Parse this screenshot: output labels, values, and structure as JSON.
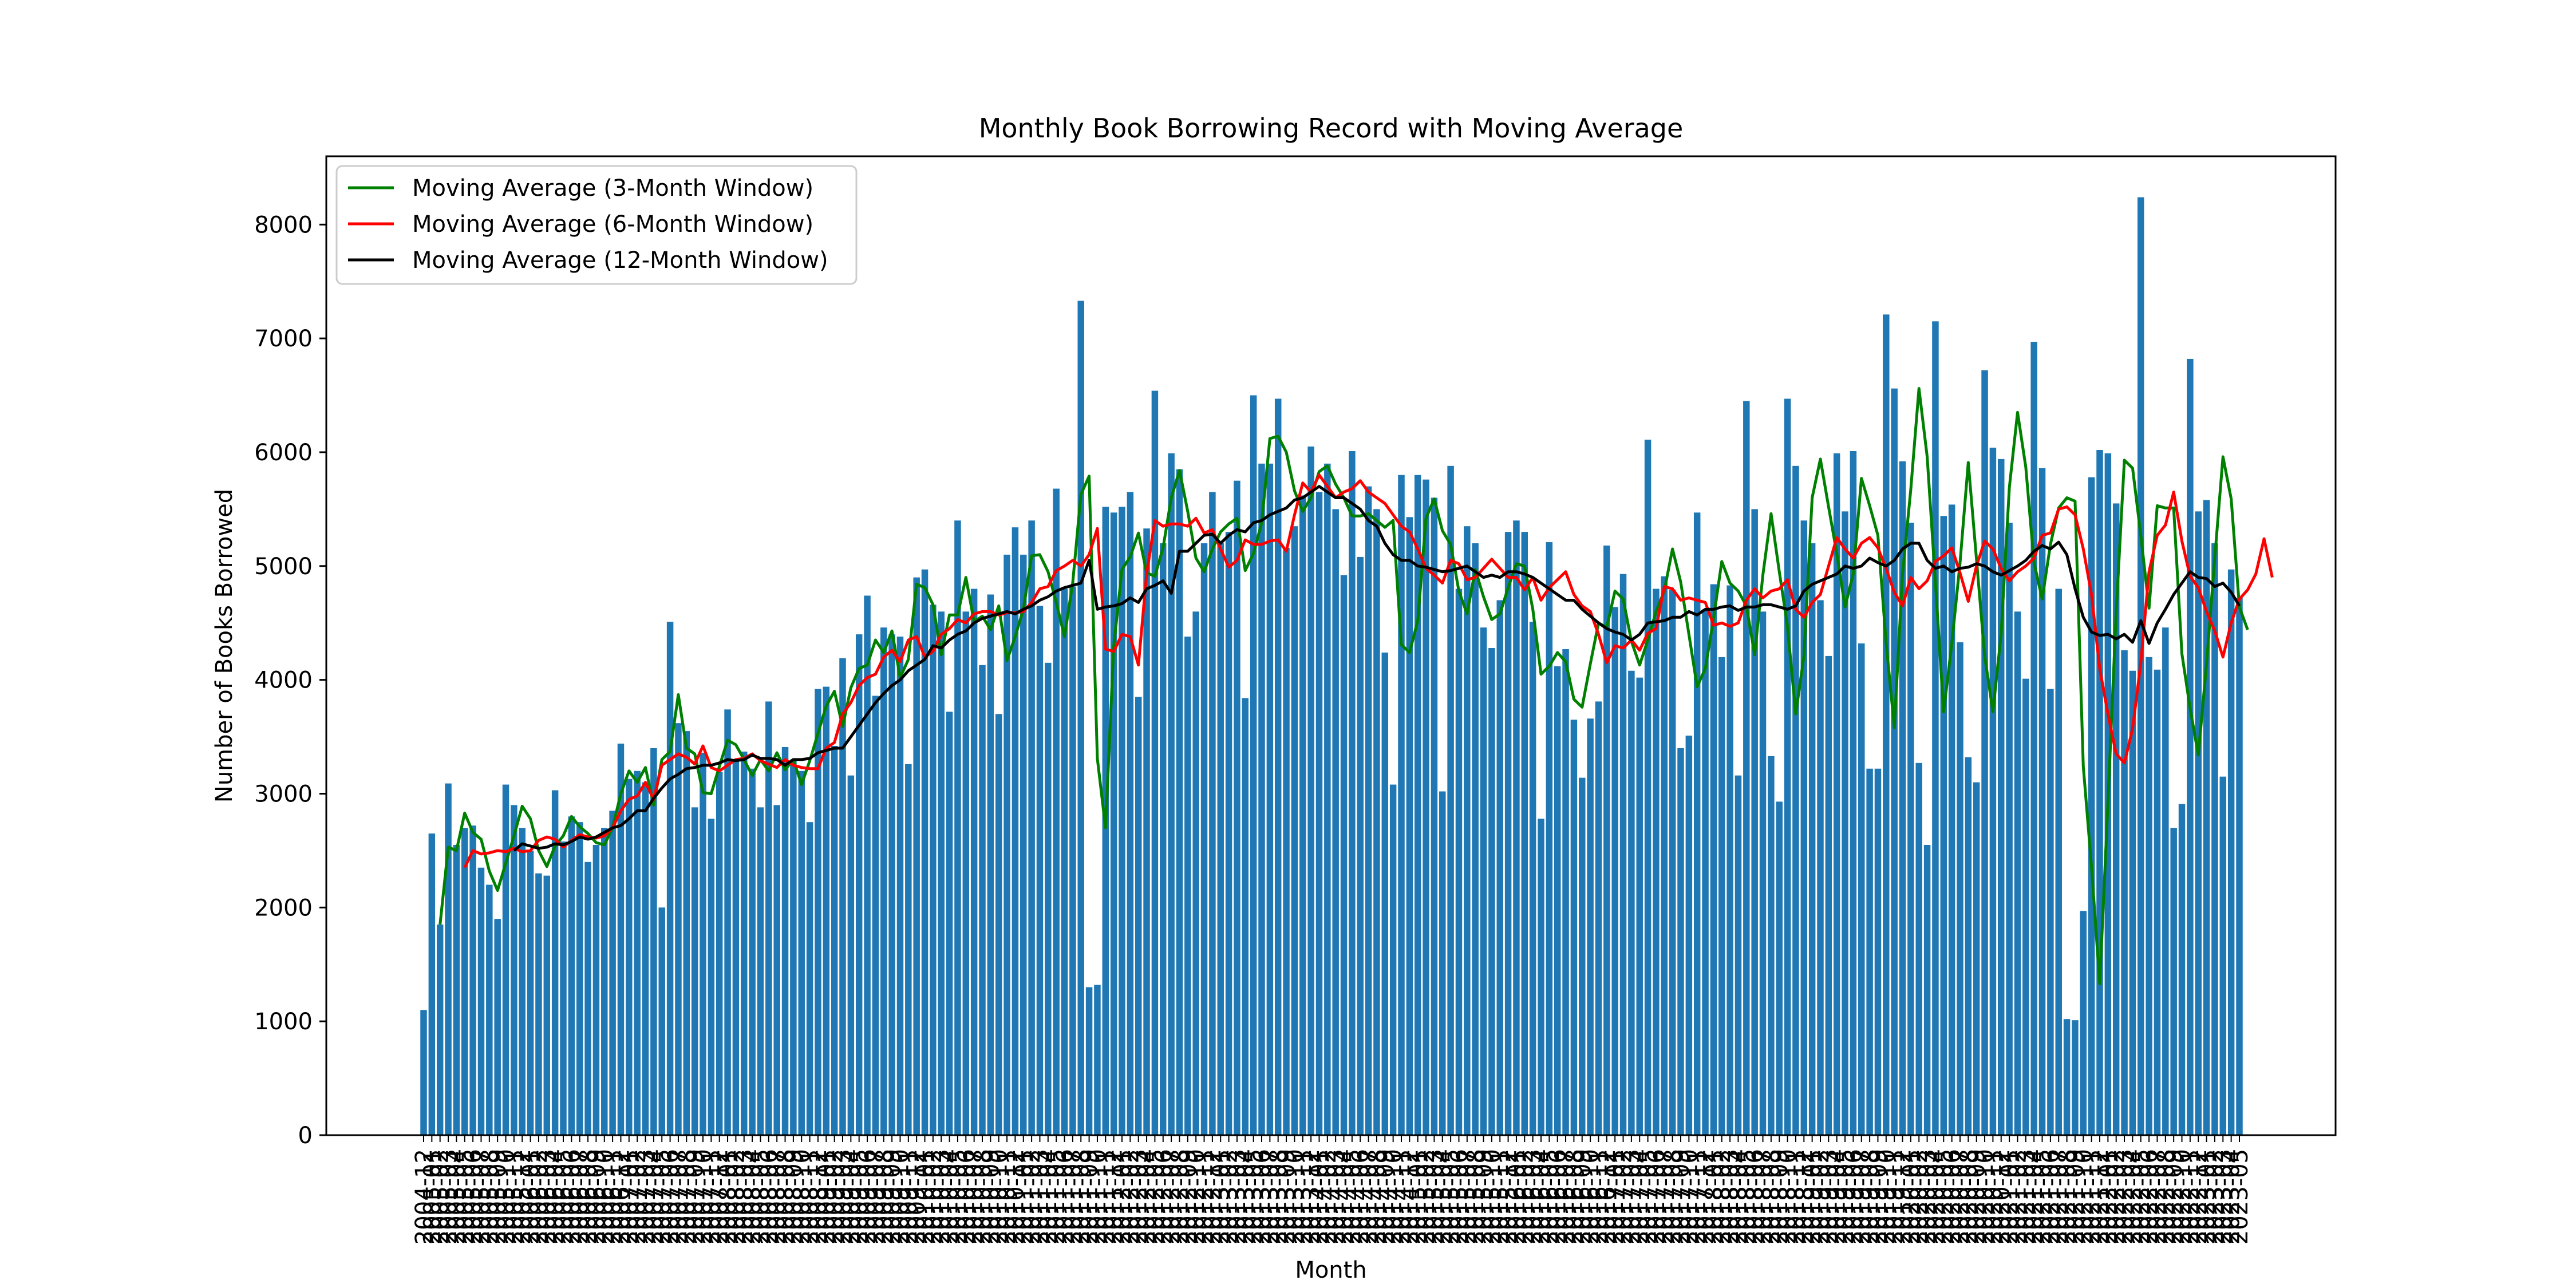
{
  "chart_data": {
    "type": "bar",
    "title": "Monthly Book Borrowing Record with Moving Average",
    "xlabel": "Month",
    "ylabel": "Number of Books Borrowed",
    "ylim": [
      0,
      8600
    ],
    "yticks": [
      0,
      1000,
      2000,
      3000,
      4000,
      5000,
      6000,
      7000,
      8000
    ],
    "start_month": "2004-12",
    "end_month": "2023-03",
    "bar_color": "#1f77b4",
    "legend": {
      "placement": "upper-left"
    },
    "bars": {
      "name": "",
      "values": [
        1100,
        2650,
        1850,
        3090,
        2550,
        2700,
        2720,
        2350,
        2200,
        1900,
        3080,
        2900,
        2700,
        2500,
        2300,
        2280,
        3030,
        2580,
        2800,
        2750,
        2400,
        2550,
        2700,
        2850,
        3440,
        3130,
        3200,
        3100,
        3400,
        2000,
        4510,
        3620,
        3550,
        2880,
        3360,
        2780,
        3190,
        3740,
        3300,
        3370,
        3220,
        2880,
        3810,
        2900,
        3410,
        3300,
        3200,
        2750,
        3920,
        3940,
        3420,
        4190,
        3160,
        4400,
        4740,
        3860,
        4460,
        4400,
        4380,
        3260,
        4900,
        4970,
        4660,
        4600,
        3720,
        5400,
        4600,
        4800,
        4130,
        4750,
        3700,
        5100,
        5340,
        5100,
        5400,
        4650,
        4150,
        5680,
        4800,
        4820,
        7330,
        1300,
        1320,
        5520,
        5470,
        5520,
        5650,
        3850,
        5330,
        6540,
        5200,
        5990,
        5850,
        4380,
        4600,
        5200,
        5650,
        5200,
        5300,
        5750,
        3840,
        6500,
        5900,
        5900,
        6470,
        5160,
        5350,
        5620,
        6050,
        5650,
        5900,
        5500,
        4920,
        6010,
        5080,
        5700,
        5500,
        4240,
        3080,
        5800,
        5430,
        5800,
        5760,
        5600,
        3020,
        5880,
        4800,
        5350,
        5200,
        4460,
        4280,
        4700,
        5300,
        5400,
        5300,
        4510,
        2780,
        5210,
        4120,
        4270,
        3650,
        3140,
        3660,
        3810,
        5180,
        4640,
        4930,
        4080,
        4020,
        6110,
        4800,
        4910,
        4790,
        3400,
        3510,
        5470,
        4620,
        4840,
        4200,
        4830,
        3160,
        6450,
        5500,
        4600,
        3330,
        2930,
        6470,
        5880,
        5400,
        5200,
        4700,
        4210,
        5990,
        5480,
        6010,
        4320,
        3220,
        3220,
        7210,
        6560,
        5920,
        5380,
        3270,
        2550,
        7150,
        5440,
        5540,
        4330,
        3320,
        3100,
        6720,
        6040,
        5940,
        5380,
        4600,
        4010,
        6970,
        5860,
        3920,
        4800,
        1020,
        1010,
        1970,
        5780,
        6020,
        5990,
        5550,
        4260,
        4080,
        8240,
        4200,
        4090,
        4460,
        2700,
        2910,
        6820,
        5480,
        5580,
        5200,
        3150,
        4970,
        4720
      ]
    },
    "series": [
      {
        "name": "Moving Average (3-Month Window)",
        "color": "#008000",
        "start_index": 2,
        "values": [
          1850,
          2530,
          2500,
          2830,
          2660,
          2600,
          2320,
          2150,
          2390,
          2630,
          2890,
          2780,
          2500,
          2360,
          2540,
          2630,
          2800,
          2710,
          2650,
          2570,
          2550,
          2700,
          3000,
          3200,
          3100,
          3230,
          2900,
          3300,
          3370,
          3870,
          3400,
          3350,
          3010,
          3000,
          3240,
          3470,
          3430,
          3300,
          3160,
          3300,
          3200,
          3360,
          3210,
          3300,
          3080,
          3290,
          3530,
          3770,
          3900,
          3590,
          3930,
          4100,
          4130,
          4350,
          4240,
          4430,
          4020,
          4180,
          4840,
          4810,
          4660,
          4220,
          4570,
          4570,
          4900,
          4510,
          4560,
          4440,
          4650,
          4170,
          4380,
          4620,
          5090,
          5100,
          4950,
          4680,
          4380,
          4850,
          5630,
          5790,
          3310,
          2700,
          4300,
          4970,
          5080,
          5290,
          4940,
          4910,
          5160,
          5600,
          5840,
          5480,
          5070,
          4950,
          5150,
          5300,
          5370,
          5420,
          4960,
          5110,
          5380,
          6120,
          6140,
          6000,
          5660,
          5480,
          5600,
          5830,
          5880,
          5720,
          5600,
          5440,
          5440,
          5460,
          5400,
          5340,
          5400,
          4310,
          4240,
          4520,
          5420,
          5590,
          5310,
          5190,
          4780,
          4580,
          4970,
          4730,
          4530,
          4580,
          4810,
          5020,
          5000,
          4620,
          4050,
          4120,
          4240,
          4160,
          3830,
          3760,
          4140,
          4500,
          4460,
          4780,
          4710,
          4340,
          4130,
          4350,
          4600,
          4780,
          5150,
          4860,
          4400,
          3940,
          4100,
          4540,
          5040,
          4850,
          4780,
          4650,
          4220,
          4920,
          5460,
          4950,
          4470,
          3700,
          4210,
          5600,
          5940,
          5520,
          5110,
          4640,
          4930,
          5770,
          5530,
          5270,
          4330,
          3580,
          4930,
          5670,
          6560,
          5960,
          4860,
          3720,
          4320,
          5030,
          5910,
          5060,
          4210,
          3720,
          4400,
          5690,
          6350,
          5870,
          5030,
          4710,
          5190,
          5510,
          5600,
          5570,
          3240,
          2360,
          1330,
          2920,
          4590,
          5930,
          5860,
          5270,
          4630,
          5530,
          5510,
          5510,
          4230,
          3750,
          3340,
          4140,
          5070,
          5960,
          5590,
          4640,
          4440
        ]
      },
      {
        "name": "Moving Average (6-Month Window)",
        "color": "#ff0000",
        "start_index": 5,
        "values": [
          2350,
          2500,
          2470,
          2480,
          2500,
          2490,
          2520,
          2490,
          2500,
          2590,
          2620,
          2600,
          2530,
          2590,
          2640,
          2620,
          2610,
          2630,
          2700,
          2850,
          2950,
          2980,
          3100,
          2950,
          3250,
          3300,
          3350,
          3320,
          3260,
          3420,
          3230,
          3200,
          3250,
          3300,
          3310,
          3350,
          3290,
          3260,
          3230,
          3300,
          3250,
          3230,
          3220,
          3220,
          3400,
          3450,
          3700,
          3800,
          3950,
          4020,
          4050,
          4200,
          4260,
          4160,
          4350,
          4380,
          4200,
          4250,
          4400,
          4450,
          4530,
          4500,
          4580,
          4600,
          4600,
          4570,
          4590,
          4590,
          4600,
          4680,
          4800,
          4820,
          4960,
          5000,
          5050,
          5000,
          5100,
          5330,
          4270,
          4250,
          4400,
          4380,
          4130,
          4930,
          5400,
          5350,
          5370,
          5370,
          5350,
          5420,
          5290,
          5320,
          5150,
          4990,
          5050,
          5230,
          5190,
          5190,
          5220,
          5230,
          5130,
          5450,
          5730,
          5650,
          5800,
          5700,
          5600,
          5650,
          5680,
          5750,
          5650,
          5600,
          5550,
          5450,
          5350,
          5300,
          5150,
          4980,
          4920,
          4850,
          5050,
          5020,
          4880,
          4900,
          4980,
          5060,
          4980,
          4900,
          4900,
          4790,
          4900,
          4700,
          4810,
          4880,
          4950,
          4750,
          4650,
          4600,
          4400,
          4150,
          4300,
          4280,
          4350,
          4260,
          4410,
          4450,
          4820,
          4800,
          4700,
          4720,
          4700,
          4680,
          4480,
          4500,
          4470,
          4500,
          4700,
          4800,
          4720,
          4780,
          4800,
          4880,
          4620,
          4550,
          4680,
          4750,
          5000,
          5250,
          5150,
          5070,
          5200,
          5250,
          5160,
          4980,
          4770,
          4650,
          4900,
          4800,
          4870,
          5040,
          5090,
          5160,
          4940,
          4690,
          5000,
          5220,
          5150,
          4980,
          4870,
          4950,
          5000,
          5070,
          5270,
          5290,
          5500,
          5520,
          5450,
          5150,
          4750,
          4100,
          3700,
          3350,
          3270,
          3570,
          4150,
          4950,
          5270,
          5360,
          5650,
          5220,
          4910,
          4810,
          4600,
          4430,
          4200,
          4500,
          4710,
          4790,
          4930,
          5240,
          4900
        ]
      },
      {
        "name": "Moving Average (12-Month Window)",
        "color": "#000000",
        "start_index": 11,
        "values": [
          2500,
          2560,
          2540,
          2520,
          2530,
          2560,
          2550,
          2580,
          2620,
          2600,
          2620,
          2660,
          2700,
          2720,
          2780,
          2850,
          2850,
          2960,
          3050,
          3130,
          3170,
          3220,
          3230,
          3250,
          3250,
          3270,
          3300,
          3290,
          3300,
          3340,
          3310,
          3310,
          3300,
          3250,
          3300,
          3300,
          3310,
          3360,
          3380,
          3400,
          3400,
          3500,
          3600,
          3700,
          3800,
          3880,
          3950,
          4000,
          4080,
          4130,
          4180,
          4300,
          4280,
          4350,
          4400,
          4430,
          4500,
          4540,
          4560,
          4580,
          4600,
          4580,
          4620,
          4650,
          4700,
          4730,
          4780,
          4810,
          4830,
          4850,
          5050,
          4620,
          4640,
          4650,
          4670,
          4720,
          4680,
          4800,
          4830,
          4870,
          4760,
          5130,
          5130,
          5200,
          5270,
          5280,
          5200,
          5270,
          5320,
          5300,
          5380,
          5400,
          5450,
          5480,
          5510,
          5580,
          5600,
          5650,
          5700,
          5650,
          5600,
          5600,
          5550,
          5500,
          5400,
          5350,
          5200,
          5100,
          5050,
          5050,
          5000,
          4990,
          4970,
          4950,
          4960,
          4980,
          5000,
          4950,
          4900,
          4920,
          4900,
          4950,
          4950,
          4930,
          4900,
          4850,
          4800,
          4750,
          4700,
          4700,
          4620,
          4560,
          4500,
          4450,
          4420,
          4400,
          4350,
          4400,
          4500,
          4510,
          4520,
          4550,
          4550,
          4600,
          4570,
          4620,
          4620,
          4640,
          4650,
          4610,
          4640,
          4640,
          4660,
          4660,
          4640,
          4620,
          4650,
          4780,
          4840,
          4870,
          4900,
          4930,
          5000,
          4980,
          5000,
          5070,
          5030,
          5000,
          5050,
          5150,
          5200,
          5200,
          5050,
          4980,
          5000,
          4950,
          4980,
          4990,
          5020,
          5000,
          4950,
          4920,
          4960,
          5000,
          5050,
          5130,
          5180,
          5150,
          5210,
          5100,
          4800,
          4550,
          4420,
          4390,
          4400,
          4360,
          4400,
          4330,
          4520,
          4320,
          4500,
          4620,
          4750,
          4850,
          4950,
          4900,
          4890,
          4820,
          4850,
          4770,
          4650
        ]
      }
    ]
  }
}
